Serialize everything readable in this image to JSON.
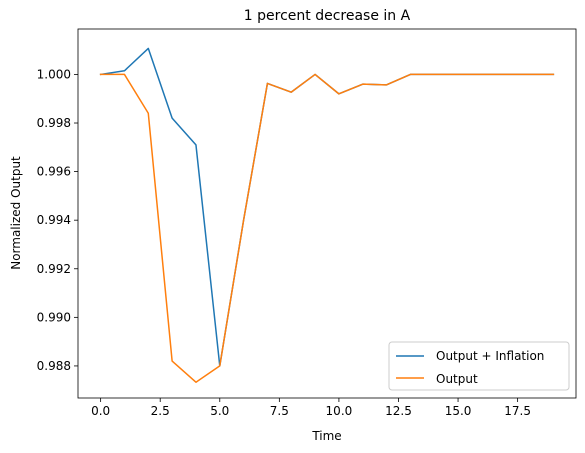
{
  "chart_data": {
    "type": "line",
    "title": "1 percent decrease in A",
    "xlabel": "Time",
    "ylabel": "Normalized Output",
    "xlim": [
      -0.95,
      19.95
    ],
    "ylim": [
      0.98668,
      1.00187
    ],
    "x_ticks": [
      0,
      2.5,
      5,
      7.5,
      10,
      12.5,
      15,
      17.5
    ],
    "x_tick_labels": [
      "0.0",
      "2.5",
      "5.0",
      "7.5",
      "10.0",
      "12.5",
      "15.0",
      "17.5"
    ],
    "y_ticks": [
      0.988,
      0.99,
      0.992,
      0.994,
      0.996,
      0.998,
      1.0
    ],
    "y_tick_labels": [
      "0.988",
      "0.990",
      "0.992",
      "0.994",
      "0.996",
      "0.998",
      "1.000"
    ],
    "grid": false,
    "legend_position": "lower-right",
    "x": [
      0,
      1,
      2,
      3,
      4,
      5,
      6,
      7,
      8,
      9,
      10,
      11,
      12,
      13,
      14,
      15,
      16,
      17,
      18,
      19
    ],
    "series": [
      {
        "name": "Output + Inflation",
        "color": "#1f77b4",
        "values": [
          1.0,
          1.00015,
          1.00107,
          0.9982,
          0.9971,
          0.988,
          0.994,
          0.99963,
          0.99927,
          1.0,
          0.9992,
          0.9996,
          0.99957,
          1.0,
          1.0,
          1.0,
          1.0,
          1.0,
          1.0,
          1.0
        ]
      },
      {
        "name": "Output",
        "color": "#ff7f0e",
        "values": [
          1.0,
          1.0,
          0.9984,
          0.9882,
          0.98733,
          0.988,
          0.994,
          0.99963,
          0.99927,
          1.0,
          0.9992,
          0.9996,
          0.99957,
          1.0,
          1.0,
          1.0,
          1.0,
          1.0,
          1.0,
          1.0
        ]
      }
    ]
  }
}
